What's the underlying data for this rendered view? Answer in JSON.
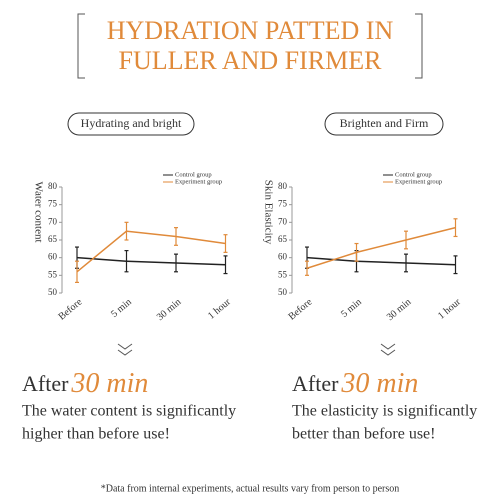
{
  "header": {
    "title_lines": [
      "HYDRATION PATTED IN",
      "FULLER AND FIRMER"
    ]
  },
  "chart_data": [
    {
      "type": "line",
      "label": "Hydrating and bright",
      "y_label": "Water content",
      "categories": [
        "Before",
        "5 min",
        "30 min",
        "1 hour"
      ],
      "ylim": [
        50,
        80
      ],
      "yticks": [
        50,
        55,
        60,
        65,
        70,
        75,
        80
      ],
      "series": [
        {
          "name": "Control group",
          "color": "#222222",
          "values": [
            60,
            59,
            58.5,
            58
          ],
          "errors": [
            3,
            3,
            2.5,
            2.5
          ]
        },
        {
          "name": "Experiment group",
          "color": "#e08a3a",
          "values": [
            56,
            67.5,
            66,
            64
          ],
          "errors": [
            3,
            2.5,
            2.5,
            2.5
          ]
        }
      ]
    },
    {
      "type": "line",
      "label": "Brighten and Firm",
      "y_label": "Skin Elasticity",
      "categories": [
        "Before",
        "5 min",
        "30 min",
        "1 hour"
      ],
      "ylim": [
        50,
        80
      ],
      "yticks": [
        50,
        55,
        60,
        65,
        70,
        75,
        80
      ],
      "series": [
        {
          "name": "Control group",
          "color": "#222222",
          "values": [
            60,
            59,
            58.5,
            58
          ],
          "errors": [
            3,
            3,
            2.5,
            2.5
          ]
        },
        {
          "name": "Experiment group",
          "color": "#e08a3a",
          "values": [
            57,
            61.5,
            65,
            68.5
          ],
          "errors": [
            2,
            2.5,
            2.5,
            2.5
          ]
        }
      ]
    }
  ],
  "panels": [
    {
      "after": "After",
      "time": "30 min",
      "lines": [
        "The water content is significantly",
        "higher than before use!"
      ]
    },
    {
      "after": "After",
      "time": "30 min",
      "lines": [
        "The elasticity is significantly",
        "better than before use!"
      ]
    }
  ],
  "footnote": "*Data from internal experiments, actual results vary from person to person"
}
